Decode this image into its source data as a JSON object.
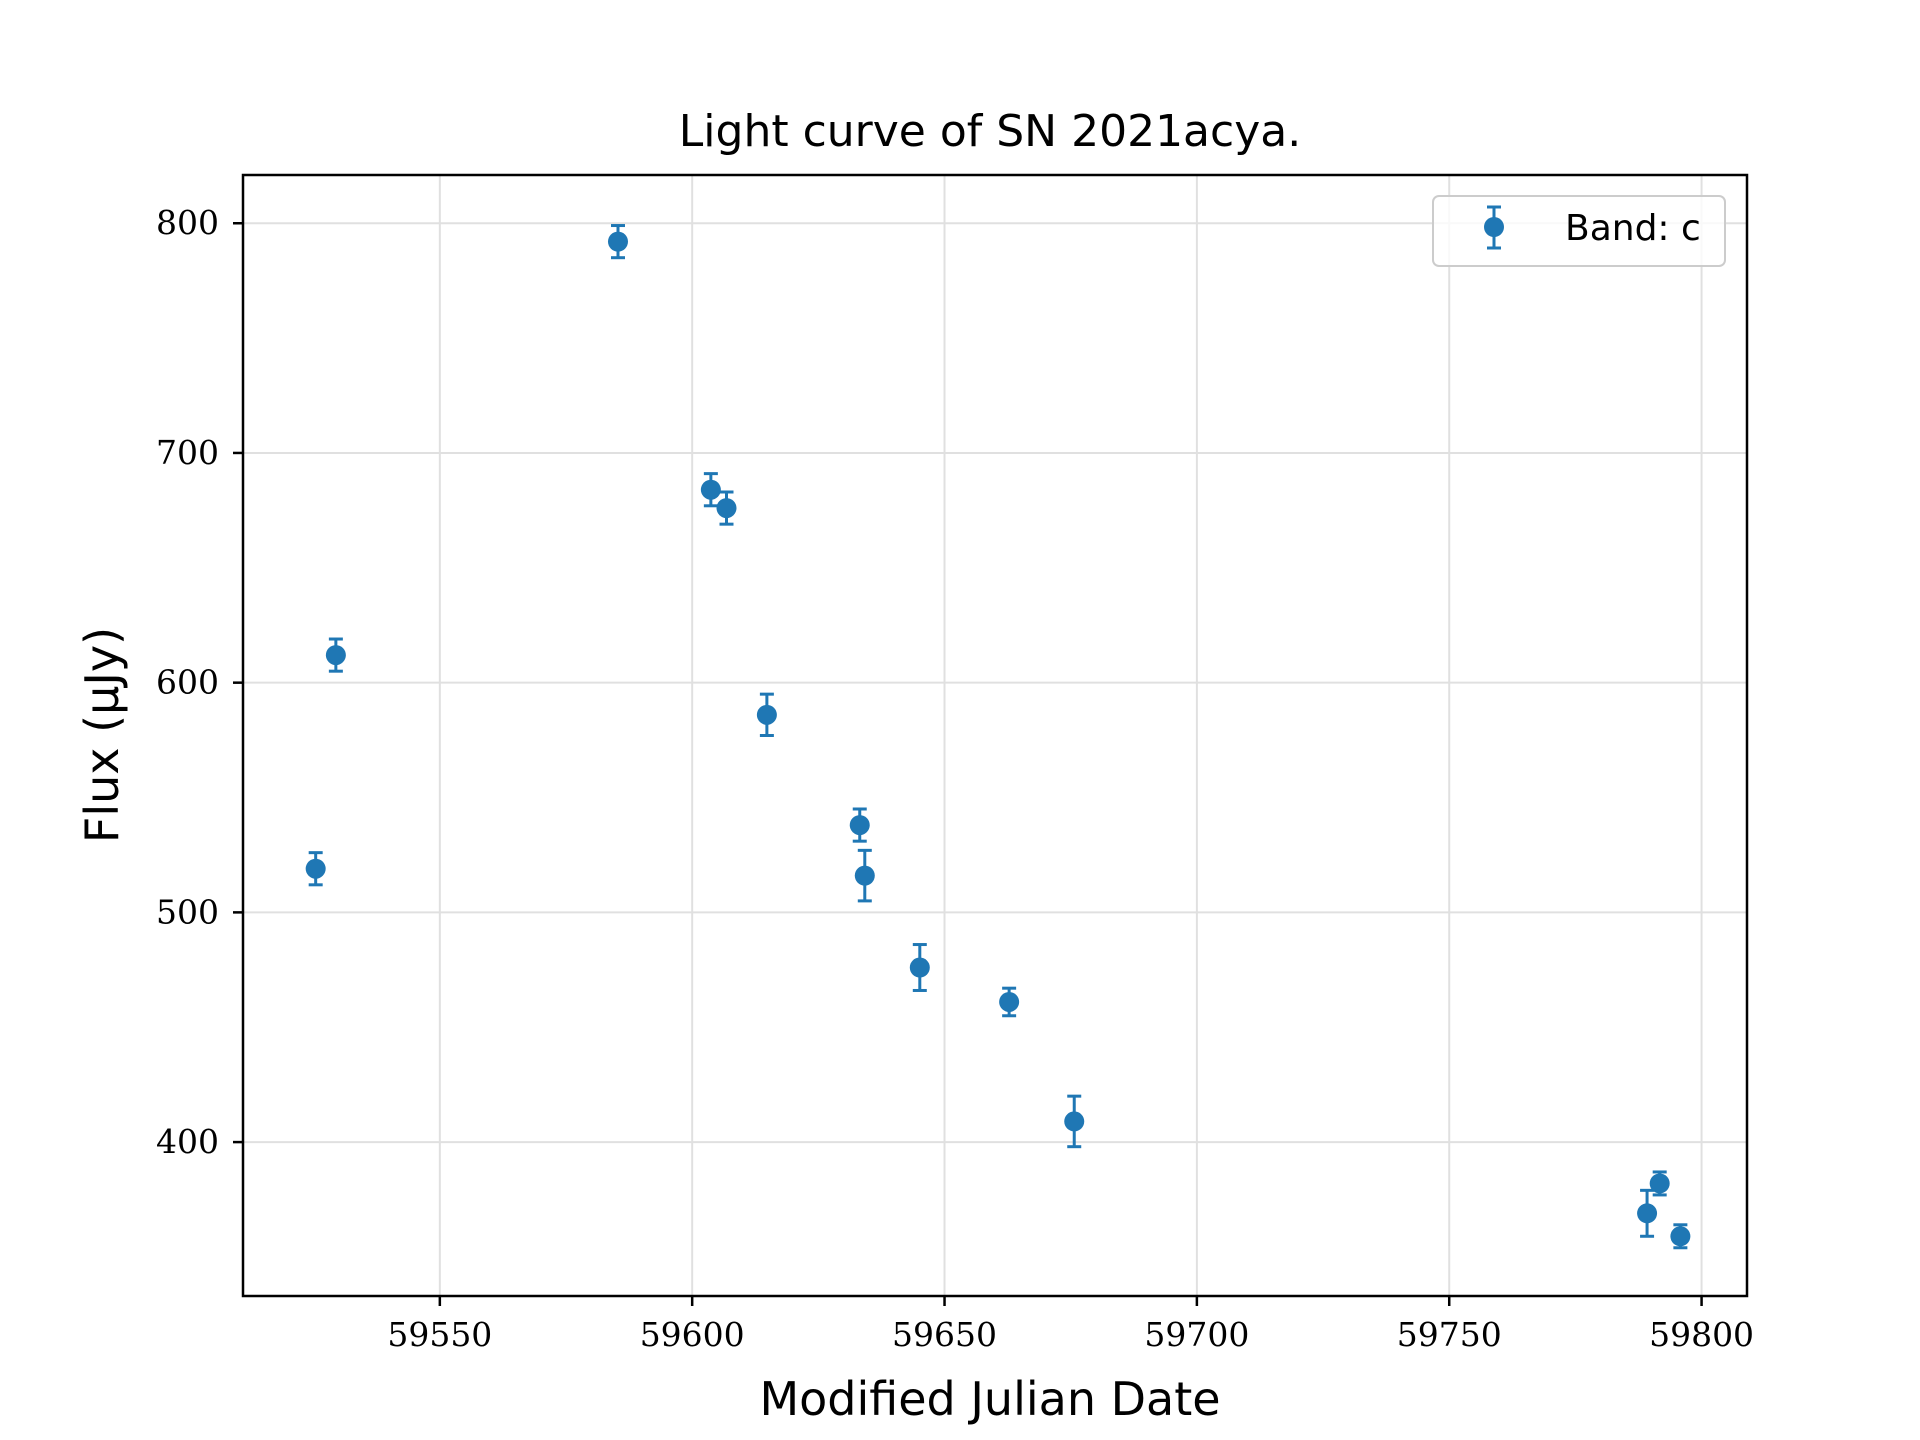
{
  "chart_data": {
    "type": "scatter",
    "title": "Light curve of SN 2021acya.",
    "xlabel": "Modified Julian Date",
    "ylabel": "Flux (μJy)",
    "xlim": [
      59511,
      59809
    ],
    "ylim": [
      333,
      821
    ],
    "xticks": [
      59550,
      59600,
      59650,
      59700,
      59750,
      59800
    ],
    "yticks": [
      400,
      500,
      600,
      700,
      800
    ],
    "grid": true,
    "legend_position": "top-right",
    "color": "#1f77b4",
    "series": [
      {
        "name": "Band: c",
        "points": [
          {
            "x": 59525.4,
            "y": 519,
            "err": 7
          },
          {
            "x": 59529.4,
            "y": 612,
            "err": 7
          },
          {
            "x": 59585.3,
            "y": 792,
            "err": 7
          },
          {
            "x": 59603.7,
            "y": 684,
            "err": 7
          },
          {
            "x": 59606.8,
            "y": 676,
            "err": 7
          },
          {
            "x": 59614.8,
            "y": 586,
            "err": 9
          },
          {
            "x": 59633.2,
            "y": 538,
            "err": 7
          },
          {
            "x": 59634.2,
            "y": 516,
            "err": 11
          },
          {
            "x": 59645.1,
            "y": 476,
            "err": 10
          },
          {
            "x": 59662.8,
            "y": 461,
            "err": 6
          },
          {
            "x": 59675.7,
            "y": 409,
            "err": 11
          },
          {
            "x": 59789.2,
            "y": 369,
            "err": 10
          },
          {
            "x": 59791.7,
            "y": 382,
            "err": 5
          },
          {
            "x": 59795.8,
            "y": 359,
            "err": 5
          }
        ]
      }
    ]
  }
}
